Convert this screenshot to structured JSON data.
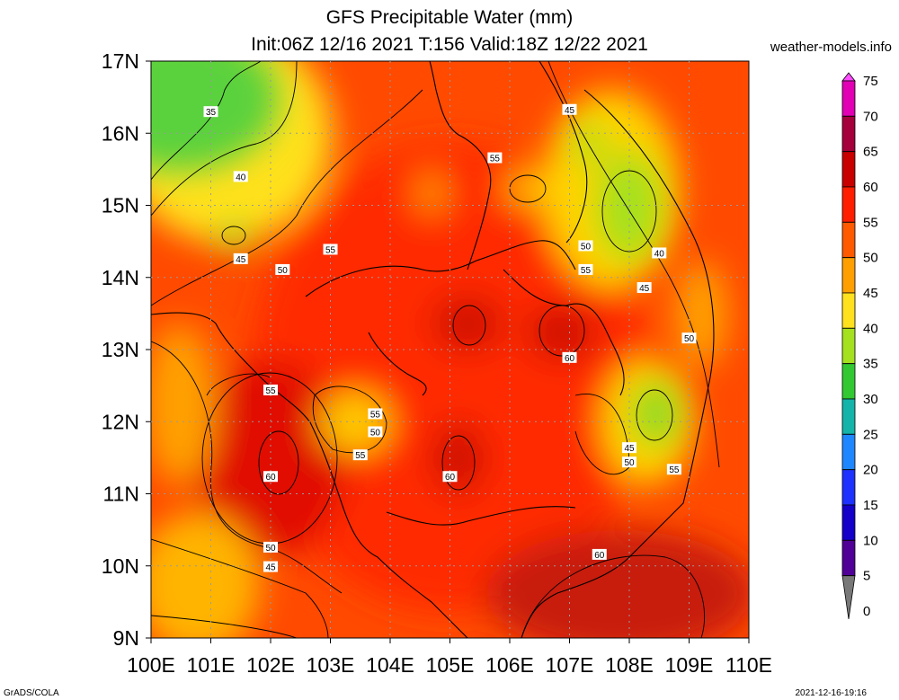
{
  "header": {
    "title_line1": "GFS Precipitable Water (mm)",
    "title_line2": "Init:06Z 12/16 2021 T:156 Valid:18Z 12/22 2021",
    "site": "weather-models.info"
  },
  "footer": {
    "left": "GrADS/COLA",
    "right": "2021-12-16-19:16"
  },
  "map": {
    "lon_labels": [
      "100E",
      "101E",
      "102E",
      "103E",
      "104E",
      "105E",
      "106E",
      "107E",
      "108E",
      "109E",
      "110E"
    ],
    "lat_labels": [
      "17N",
      "16N",
      "15N",
      "14N",
      "13N",
      "12N",
      "11N",
      "10N",
      "9N"
    ],
    "contour_labels": [
      {
        "text": "35",
        "lon": 101.0,
        "lat": 16.3
      },
      {
        "text": "40",
        "lon": 101.5,
        "lat": 15.4
      },
      {
        "text": "45",
        "lon": 101.5,
        "lat": 14.26
      },
      {
        "text": "50",
        "lon": 102.2,
        "lat": 14.11
      },
      {
        "text": "55",
        "lon": 103.0,
        "lat": 14.39
      },
      {
        "text": "45",
        "lon": 107.0,
        "lat": 16.33
      },
      {
        "text": "55",
        "lon": 105.75,
        "lat": 15.66
      },
      {
        "text": "50",
        "lon": 107.27,
        "lat": 14.44
      },
      {
        "text": "55",
        "lon": 107.27,
        "lat": 14.11
      },
      {
        "text": "40",
        "lon": 108.5,
        "lat": 14.34
      },
      {
        "text": "45",
        "lon": 108.25,
        "lat": 13.86
      },
      {
        "text": "50",
        "lon": 109.0,
        "lat": 13.16
      },
      {
        "text": "60",
        "lon": 107.0,
        "lat": 12.89
      },
      {
        "text": "55",
        "lon": 102.0,
        "lat": 12.44
      },
      {
        "text": "55",
        "lon": 103.75,
        "lat": 12.11
      },
      {
        "text": "50",
        "lon": 103.75,
        "lat": 11.86
      },
      {
        "text": "55",
        "lon": 103.5,
        "lat": 11.54
      },
      {
        "text": "45",
        "lon": 108.0,
        "lat": 11.64
      },
      {
        "text": "50",
        "lon": 108.0,
        "lat": 11.44
      },
      {
        "text": "55",
        "lon": 108.75,
        "lat": 11.34
      },
      {
        "text": "60",
        "lon": 102.0,
        "lat": 11.24
      },
      {
        "text": "60",
        "lon": 105.0,
        "lat": 11.24
      },
      {
        "text": "50",
        "lon": 102.0,
        "lat": 10.26
      },
      {
        "text": "45",
        "lon": 102.0,
        "lat": 9.99
      },
      {
        "text": "60",
        "lon": 107.5,
        "lat": 10.16
      }
    ]
  },
  "colorbar": {
    "labels": [
      "75",
      "70",
      "65",
      "60",
      "55",
      "50",
      "45",
      "40",
      "35",
      "30",
      "25",
      "20",
      "15",
      "10",
      "5",
      "0"
    ],
    "colors": [
      "#ff4dff",
      "#e100b4",
      "#a5003c",
      "#c80000",
      "#ff1e00",
      "#ff5a00",
      "#ffa000",
      "#ffe11e",
      "#a5e11e",
      "#32c832",
      "#14b4aa",
      "#1e87ff",
      "#1e32ff",
      "#1400c8",
      "#500096",
      "#787878"
    ]
  }
}
